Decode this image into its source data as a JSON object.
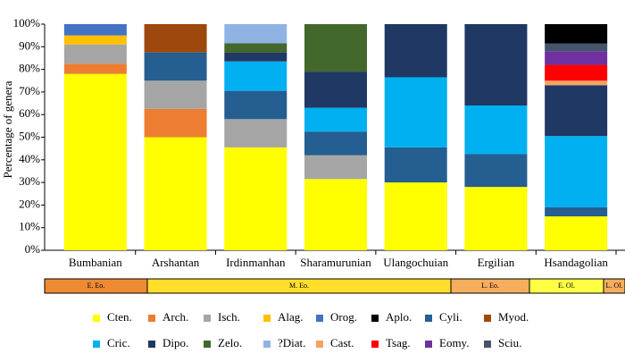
{
  "chart_data": {
    "type": "stacked_bar",
    "y_label": "Percentage of genera",
    "categories": [
      "Bumbanian",
      "Arshantan",
      "Irdinmanhan",
      "Sharamurunian",
      "Ulangochuian",
      "Ergilian",
      "Hsandagolian"
    ],
    "ylim": [
      0,
      100
    ],
    "yticks": [
      {
        "value": 0,
        "label": "0%"
      },
      {
        "value": 10,
        "label": "10%"
      },
      {
        "value": 20,
        "label": "20%"
      },
      {
        "value": 30,
        "label": "30%"
      },
      {
        "value": 40,
        "label": "40%"
      },
      {
        "value": 50,
        "label": "50%"
      },
      {
        "value": 60,
        "label": "60%"
      },
      {
        "value": 70,
        "label": "70%"
      },
      {
        "value": 80,
        "label": "80%"
      },
      {
        "value": 90,
        "label": "90%"
      },
      {
        "value": 100,
        "label": "100%"
      }
    ],
    "series": [
      {
        "name": "Cten.",
        "color": "#ffff00",
        "values": [
          78,
          50,
          45.5,
          31.5,
          30,
          28,
          15
        ]
      },
      {
        "name": "Arch.",
        "color": "#ed7d31",
        "values": [
          4.5,
          12.5,
          null,
          null,
          null,
          null,
          null
        ]
      },
      {
        "name": "Isch.",
        "color": "#a5a5a5",
        "values": [
          8.5,
          12.5,
          12.5,
          10.5,
          null,
          null,
          null
        ]
      },
      {
        "name": "Alag.",
        "color": "#ffc000",
        "values": [
          4,
          null,
          null,
          null,
          null,
          null,
          null
        ]
      },
      {
        "name": "Orog.",
        "color": "#4472c4",
        "values": [
          5,
          null,
          null,
          null,
          null,
          null,
          null
        ]
      },
      {
        "name": "Cyli.",
        "color": "#255e91",
        "values": [
          null,
          12.5,
          12.5,
          10.5,
          15.5,
          14.5,
          4
        ]
      },
      {
        "name": "Cric.",
        "color": "#00b0f0",
        "values": [
          null,
          null,
          13,
          10.5,
          31,
          21.5,
          31.5
        ]
      },
      {
        "name": "Dipo.",
        "color": "#203864",
        "values": [
          null,
          null,
          4,
          16,
          23.5,
          36,
          22.5
        ]
      },
      {
        "name": "Zelo.",
        "color": "#43682b",
        "values": [
          null,
          null,
          4,
          21,
          null,
          null,
          null
        ]
      },
      {
        "name": "?Diat.",
        "color": "#8fb4e3",
        "values": [
          null,
          null,
          8.5,
          null,
          null,
          null,
          null
        ]
      },
      {
        "name": "Myod.",
        "color": "#9e480e",
        "values": [
          null,
          12.5,
          null,
          null,
          null,
          null,
          null
        ]
      },
      {
        "name": "Cast.",
        "color": "#f4a460",
        "values": [
          null,
          null,
          null,
          null,
          null,
          null,
          2
        ]
      },
      {
        "name": "Tsag.",
        "color": "#ff0000",
        "values": [
          null,
          null,
          null,
          null,
          null,
          null,
          7
        ]
      },
      {
        "name": "Eomy.",
        "color": "#7030a0",
        "values": [
          null,
          null,
          null,
          null,
          null,
          null,
          6
        ]
      },
      {
        "name": "Sciu.",
        "color": "#44546a",
        "values": [
          null,
          null,
          null,
          null,
          null,
          null,
          3.5
        ]
      },
      {
        "name": "Aplo.",
        "color": "#000000",
        "values": [
          null,
          null,
          null,
          null,
          null,
          null,
          8.5
        ]
      }
    ],
    "periods": [
      {
        "label": "E. Eo.",
        "color": "#ee8a33"
      },
      {
        "label": "M. Eo.",
        "color": "#ffde2a"
      },
      {
        "label": "L. Eo.",
        "color": "#f5ad5e"
      },
      {
        "label": "E. Ol.",
        "color": "#ffff44"
      },
      {
        "label": "L. Ol.",
        "color": "#f5ad5e"
      }
    ]
  }
}
